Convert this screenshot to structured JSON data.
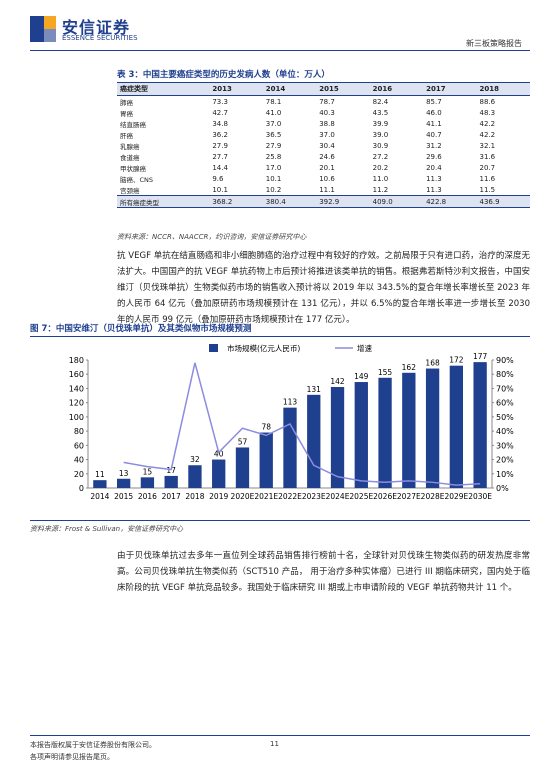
{
  "header": {
    "logo": "安信证券",
    "logo_en": "ESSENCE SECURITIES",
    "report": "新三板策略报告"
  },
  "table": {
    "title": "表 3：中国主要癌症类型的历史发病人数（单位：万人）",
    "header": [
      "癌症类型",
      "2013",
      "2014",
      "2015",
      "2016",
      "2017",
      "2018"
    ],
    "rows": [
      [
        "肺癌",
        "73.3",
        "78.1",
        "78.7",
        "82.4",
        "85.7",
        "88.6"
      ],
      [
        "胃癌",
        "42.7",
        "41.0",
        "40.3",
        "43.5",
        "46.0",
        "48.3"
      ],
      [
        "结直肠癌",
        "34.8",
        "37.0",
        "38.8",
        "39.9",
        "41.1",
        "42.2"
      ],
      [
        "肝癌",
        "36.2",
        "36.5",
        "37.0",
        "39.0",
        "40.7",
        "42.2"
      ],
      [
        "乳腺癌",
        "27.9",
        "27.9",
        "30.4",
        "30.9",
        "31.2",
        "32.1"
      ],
      [
        "食道癌",
        "27.7",
        "25.8",
        "24.6",
        "27.2",
        "29.6",
        "31.6"
      ],
      [
        "甲状腺癌",
        "14.4",
        "17.0",
        "20.1",
        "20.2",
        "20.4",
        "20.7"
      ],
      [
        "脑癌、CNS",
        "9.6",
        "10.1",
        "10.6",
        "11.0",
        "11.3",
        "11.6"
      ],
      [
        "宫颈癌",
        "10.1",
        "10.2",
        "11.1",
        "11.2",
        "11.3",
        "11.5"
      ],
      [
        "所有癌症类型",
        "368.2",
        "380.4",
        "392.9",
        "409.0",
        "422.8",
        "436.9"
      ]
    ],
    "source": "资料来源：NCCR、NAACCR，约识咨询，安信证券研究中心"
  },
  "paragraphs": [
    "抗 VEGF 单抗在结直肠癌和非小细胞肺癌的治疗过程中有较好的疗效。之前局限于只有进口药，治疗的深度无法扩大。中国国产的抗 VEGF 单抗药物上市后预计将推进该类单抗的销售。根据弗若斯特沙利文报告，中国安维汀（贝伐珠单抗）生物类似药市场的销售收入预计将以 2019 年以 343.5%的复合年增长率增长至 2023 年的人民币 64 亿元（叠加原研药市场规模预计在 131 亿元），并以 6.5%的复合年增长率进一步增长至 2030 年的人民币 99 亿元（叠加原研药市场规模预计在 177 亿元）。",
    "由于贝伐珠单抗过去多年一直位列全球药品销售排行榜前十名，全球针对贝伐珠生物类似药的研发热度非常高。公司贝伐珠单抗生物类似药（SCT510 产品， 用于治疗多种实体瘤）已进行 III 期临床研究，国内处于临床阶段的抗 VEGF 单抗竞品较多。我国处于临床研究 III 期或上市申请阶段的 VEGF 单抗药物共计 11 个。"
  ],
  "chart_data": {
    "type": "bar",
    "title": "图 7：中国安维汀（贝伐珠单抗）及其类似物市场规模预测",
    "source": "资料来源：Frost & Sullivan，安信证券研究中心",
    "categories": [
      "2014",
      "2015",
      "2016",
      "2017",
      "2018",
      "2019",
      "2020E",
      "2021E",
      "2022E",
      "2023E",
      "2024E",
      "2025E",
      "2026E",
      "2027E",
      "2028E",
      "2029E",
      "2030E"
    ],
    "series": [
      {
        "name": "市场规模(亿元人民币)",
        "type": "bar",
        "color": "#1f3f8f",
        "values": [
          11,
          13,
          15,
          17,
          32,
          40,
          57,
          78,
          113,
          131,
          142,
          149,
          155,
          162,
          168,
          172,
          177
        ]
      },
      {
        "name": "增速",
        "type": "line",
        "axis": "y2",
        "color": "#8c8ce0",
        "values": [
          null,
          18,
          15,
          13,
          88,
          25,
          42,
          37,
          45,
          16,
          8,
          5,
          4,
          5,
          4,
          2,
          3
        ]
      }
    ],
    "ylim": [
      0,
      180
    ],
    "yticks": [
      0,
      20,
      40,
      60,
      80,
      100,
      120,
      140,
      160,
      180
    ],
    "y2lim": [
      0,
      90
    ],
    "y2ticks": [
      {
        "value": 0,
        "label": "0%"
      },
      {
        "value": 10,
        "label": "10%"
      },
      {
        "value": 20,
        "label": "20%"
      },
      {
        "value": 30,
        "label": "30%"
      },
      {
        "value": 40,
        "label": "40%"
      },
      {
        "value": 50,
        "label": "50%"
      },
      {
        "value": 60,
        "label": "60%"
      },
      {
        "value": 70,
        "label": "70%"
      },
      {
        "value": 80,
        "label": "80%"
      },
      {
        "value": 90,
        "label": "90%"
      }
    ],
    "legend": "top"
  },
  "footer": [
    "本报告版权属于安信证券股份有限公司。",
    "各项声明请参见报告尾页。",
    "11"
  ]
}
